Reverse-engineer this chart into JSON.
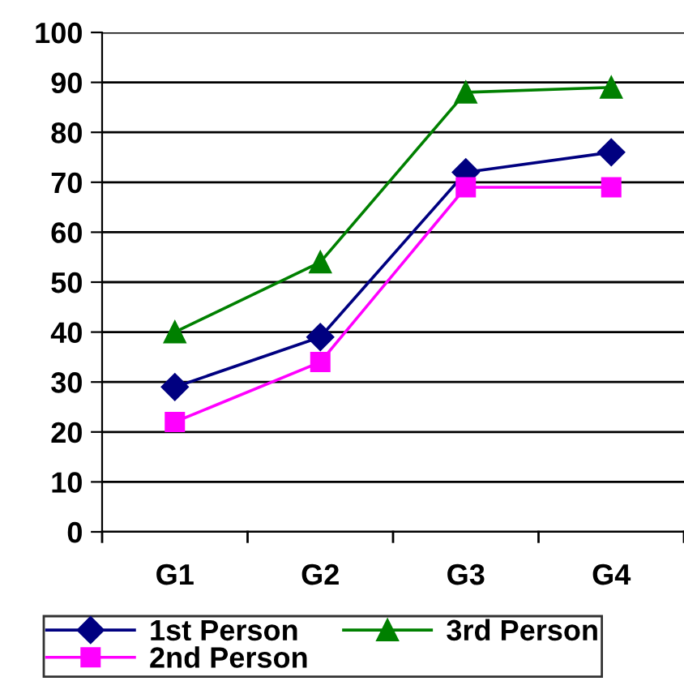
{
  "chart_data": {
    "type": "line",
    "categories": [
      "G1",
      "G2",
      "G3",
      "G4"
    ],
    "series": [
      {
        "name": "1st Person",
        "color": "#000080",
        "marker": "diamond",
        "values": [
          29,
          39,
          72,
          76
        ]
      },
      {
        "name": "2nd Person",
        "color": "#ff00ff",
        "marker": "square",
        "values": [
          22,
          34,
          69,
          69
        ]
      },
      {
        "name": "3rd Person",
        "color": "#008000",
        "marker": "triangle",
        "values": [
          40,
          54,
          88,
          89
        ]
      }
    ],
    "ylim": [
      0,
      100
    ],
    "yticks": [
      0,
      10,
      20,
      30,
      40,
      50,
      60,
      70,
      80,
      90,
      100
    ],
    "grid": "y",
    "legend": "bottom",
    "line_style": "solid"
  }
}
